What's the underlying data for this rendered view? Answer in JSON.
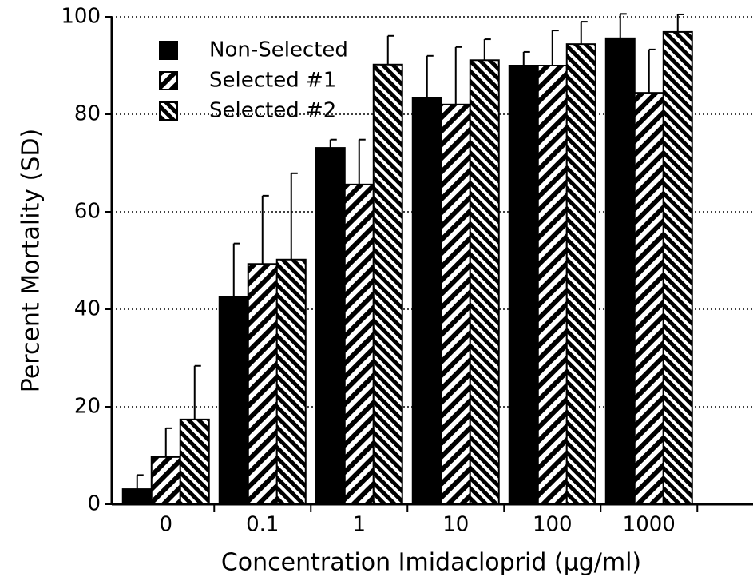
{
  "chart_data": {
    "type": "bar",
    "xlabel": "Concentration  Imidacloprid  (μg/ml)",
    "ylabel": "Percent Mortality (SD)",
    "categories": [
      "0",
      "0.1",
      "1",
      "10",
      "100",
      "1000"
    ],
    "series": [
      {
        "name": "Non-Selected",
        "color": "#000000",
        "hatch": "solid",
        "values": [
          3.1,
          42.5,
          73.1,
          83.3,
          90,
          95.6
        ],
        "errors": [
          2.9,
          11,
          1.7,
          8.7,
          2.8,
          5
        ]
      },
      {
        "name": "Selected #1",
        "color": "#000000",
        "hatch": "forward",
        "values": [
          9.7,
          49.3,
          65.6,
          82,
          90,
          84.4
        ],
        "errors": [
          5.9,
          14,
          9.2,
          11.8,
          7.2,
          8.9
        ]
      },
      {
        "name": "Selected #2",
        "color": "#000000",
        "hatch": "backward",
        "values": [
          17.4,
          50.2,
          90.2,
          91.1,
          94.4,
          96.9
        ],
        "errors": [
          11,
          17.7,
          5.9,
          4.3,
          4.6,
          3.6
        ]
      }
    ],
    "ylim": [
      0,
      100
    ],
    "yticks": [
      0,
      20,
      40,
      60,
      80,
      100
    ],
    "grid": true,
    "legend": "upper left"
  }
}
